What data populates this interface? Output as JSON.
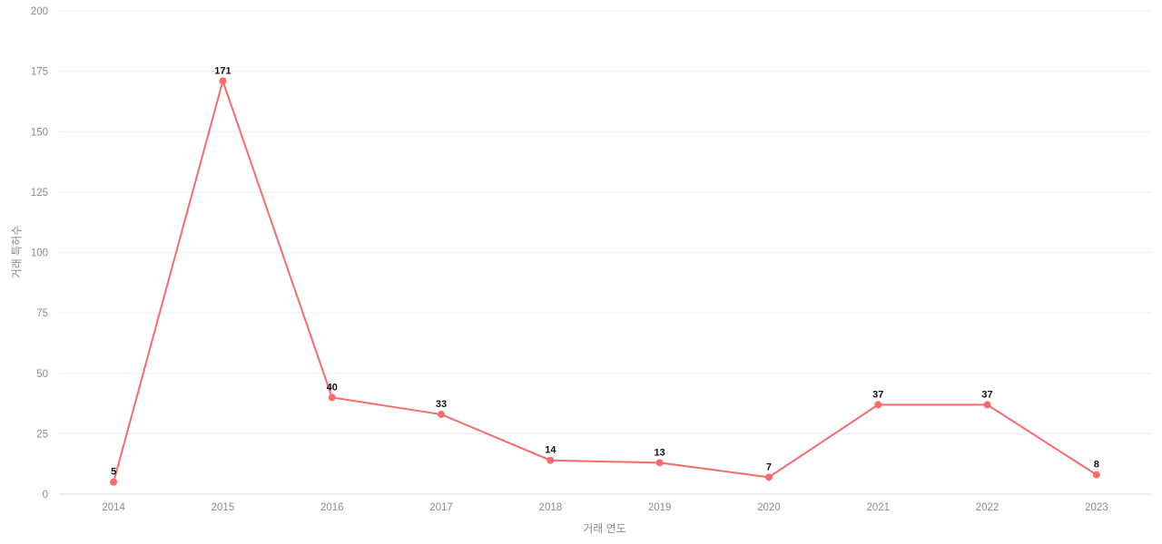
{
  "chart_data": {
    "type": "line",
    "x": [
      "2014",
      "2015",
      "2016",
      "2017",
      "2018",
      "2019",
      "2020",
      "2021",
      "2022",
      "2023"
    ],
    "series": [
      {
        "name": "거래 특허수",
        "values": [
          5,
          171,
          40,
          33,
          14,
          13,
          7,
          37,
          37,
          8
        ]
      }
    ],
    "title": "",
    "xlabel": "거래 연도",
    "ylabel": "거래 특허수",
    "ylim": [
      0,
      200
    ],
    "yticks": [
      0,
      25,
      50,
      75,
      100,
      125,
      150,
      175,
      200
    ],
    "grid": true,
    "legend": "none",
    "line_color": "#f86b6b",
    "gridline_color": "#ececec",
    "axis_line_color": "#d9d9d9",
    "tick_color": "#8c8c8c",
    "background": "#ffffff"
  }
}
